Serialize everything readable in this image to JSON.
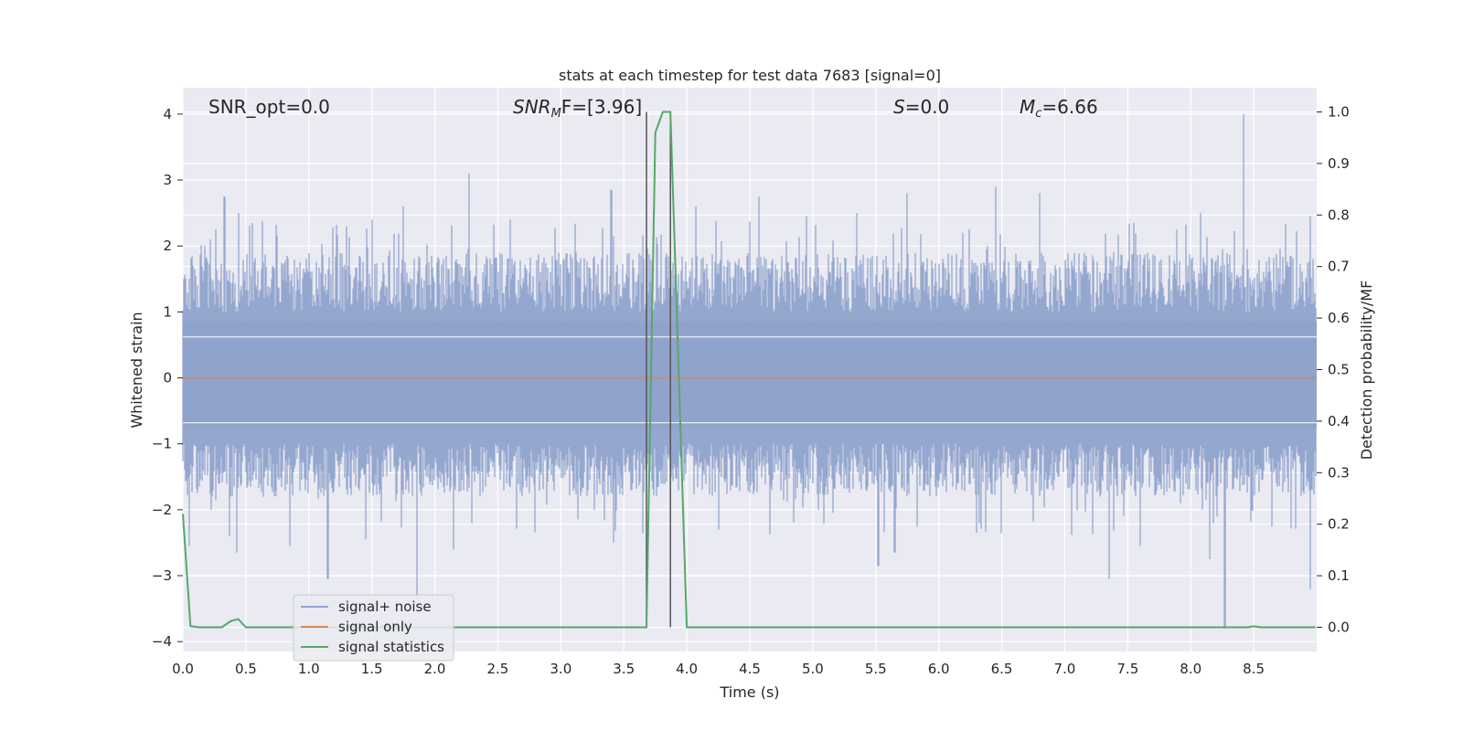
{
  "chart_data": {
    "type": "line",
    "title": "stats at each timestep for test data 7683 [signal=0]",
    "xlabel": "Time (s)",
    "ylabel": "Whitened strain",
    "y2label": "Detection probability/MF",
    "xlim": [
      0,
      9.0
    ],
    "ylim": [
      -4.15,
      4.4
    ],
    "y2lim": [
      -0.047,
      1.047
    ],
    "x_ticks": [
      0.0,
      0.5,
      1.0,
      1.5,
      2.0,
      2.5,
      3.0,
      3.5,
      4.0,
      4.5,
      5.0,
      5.5,
      6.0,
      6.5,
      7.0,
      7.5,
      8.0,
      8.5
    ],
    "x_tick_labels": [
      "0.0",
      "0.5",
      "1.0",
      "1.5",
      "2.0",
      "2.5",
      "3.0",
      "3.5",
      "4.0",
      "4.5",
      "5.0",
      "5.5",
      "6.0",
      "6.5",
      "7.0",
      "7.5",
      "8.0",
      "8.5"
    ],
    "y_ticks": [
      4,
      3,
      2,
      1,
      0,
      -1,
      -2,
      -3,
      -4
    ],
    "y_tick_labels": [
      "4",
      "3",
      "2",
      "1",
      "0",
      "−1",
      "−2",
      "−3",
      "−4"
    ],
    "y2_ticks": [
      1.0,
      0.9,
      0.8,
      0.7,
      0.6,
      0.5,
      0.4,
      0.3,
      0.2,
      0.1,
      0.0
    ],
    "y2_tick_labels": [
      "1.0",
      "0.9",
      "0.8",
      "0.7",
      "0.6",
      "0.5",
      "0.4",
      "0.3",
      "0.2",
      "0.1",
      "0.0"
    ],
    "grid": true,
    "legend_position": "lower-left",
    "annotations": {
      "snr_opt": "SNR_opt=0.0",
      "snr_mf_base": "SNR",
      "snr_mf_sub": "M",
      "snr_mf_tail": "F=[3.96]",
      "s_var": "S",
      "s_tail": "=0.0",
      "mc_base": "M",
      "mc_sub": "c",
      "mc_tail": "=6.66"
    },
    "vertical_lines": [
      3.68,
      3.87
    ],
    "series": [
      {
        "name": "signal+ noise",
        "color": "#8fa3cc",
        "style": "whitened-strain noise envelope",
        "upper_peaks": [
          [
            0.01,
            1.5
          ],
          [
            0.22,
            2.1
          ],
          [
            0.33,
            2.75
          ],
          [
            0.44,
            2.5
          ],
          [
            0.55,
            2.35
          ],
          [
            1.3,
            2.3
          ],
          [
            1.5,
            2.4
          ],
          [
            1.75,
            2.6
          ],
          [
            2.27,
            3.1
          ],
          [
            2.6,
            2.4
          ],
          [
            3.4,
            2.85
          ],
          [
            4.07,
            2.6
          ],
          [
            4.57,
            2.75
          ],
          [
            4.95,
            2.45
          ],
          [
            5.35,
            2.5
          ],
          [
            5.75,
            2.8
          ],
          [
            6.45,
            2.9
          ],
          [
            6.8,
            2.8
          ],
          [
            7.55,
            2.35
          ],
          [
            8.08,
            2.5
          ],
          [
            8.42,
            4.0
          ],
          [
            8.95,
            2.45
          ]
        ],
        "lower_peaks": [
          [
            0.05,
            -2.55
          ],
          [
            0.37,
            -2.4
          ],
          [
            0.43,
            -2.65
          ],
          [
            0.85,
            -2.55
          ],
          [
            1.15,
            -3.05
          ],
          [
            1.45,
            -2.45
          ],
          [
            1.86,
            -3.35
          ],
          [
            2.15,
            -2.6
          ],
          [
            3.42,
            -2.5
          ],
          [
            5.52,
            -2.85
          ],
          [
            5.65,
            -2.65
          ],
          [
            7.35,
            -3.05
          ],
          [
            7.6,
            -2.55
          ],
          [
            8.15,
            -2.75
          ],
          [
            8.27,
            -3.8
          ],
          [
            8.95,
            -3.2
          ]
        ]
      },
      {
        "name": "signal only",
        "color": "#dd8452",
        "x": [
          0.0,
          9.0
        ],
        "y": [
          0.0,
          0.0
        ]
      },
      {
        "name": "signal statistics",
        "color": "#55a868",
        "axis": "right",
        "x": [
          0.0,
          0.06,
          0.13,
          0.2,
          0.31,
          0.38,
          0.44,
          0.5,
          0.63,
          0.75,
          1.0,
          1.5,
          2.0,
          2.5,
          3.0,
          3.5,
          3.68,
          3.75,
          3.81,
          3.87,
          4.0,
          4.5,
          5.0,
          6.0,
          7.0,
          8.0,
          8.2,
          8.45,
          8.5,
          8.56,
          8.7,
          8.99
        ],
        "y": [
          0.22,
          0.002,
          0.0,
          0.0,
          0.0,
          0.012,
          0.016,
          0.0,
          0.0,
          0.0,
          0.0,
          0.0,
          0.0,
          0.0,
          0.0,
          0.0,
          0.0,
          0.96,
          1.0,
          1.0,
          0.0,
          0.0,
          0.0,
          0.0,
          0.0,
          0.0,
          0.0,
          0.0,
          0.002,
          0.0,
          0.0,
          0.0
        ]
      }
    ]
  }
}
